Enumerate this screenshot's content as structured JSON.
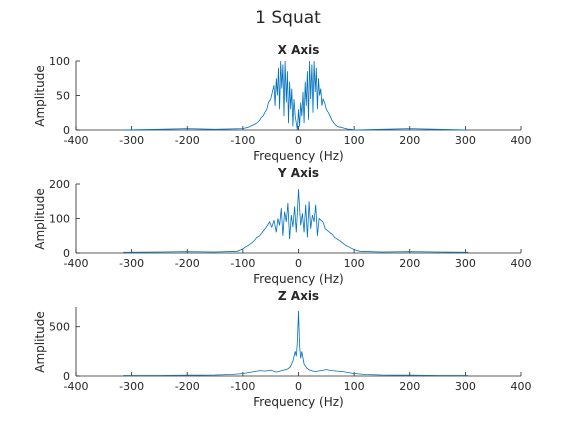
{
  "figure_title": "1 Squat",
  "colors": {
    "trace": "#0072BD",
    "axis": "#262626",
    "background": "#ffffff"
  },
  "chart_data": [
    {
      "type": "line",
      "title": "X Axis",
      "xlabel": "Frequency (Hz)",
      "ylabel": "Amplitude",
      "xlim": [
        -400,
        400
      ],
      "ylim": [
        0,
        100
      ],
      "xticks": [
        -400,
        -300,
        -200,
        -100,
        0,
        100,
        200,
        300,
        400
      ],
      "yticks": [
        0,
        50,
        100
      ],
      "grid": false,
      "series": [
        {
          "x": [
            -315,
            -250,
            -200,
            -150,
            -100,
            -95,
            -90,
            -85,
            -80,
            -75,
            -70,
            -67,
            -64,
            -60,
            -57,
            -54,
            -50,
            -47,
            -44,
            -42,
            -40,
            -38,
            -36,
            -34,
            -32,
            -30,
            -28,
            -26,
            -24,
            -22,
            -20,
            -18,
            -16,
            -14,
            -12,
            -10,
            -8,
            -6,
            -4,
            -2,
            0,
            2,
            4,
            6,
            8,
            10,
            12,
            14,
            16,
            18,
            20,
            22,
            24,
            26,
            28,
            30,
            32,
            34,
            36,
            38,
            40,
            42,
            44,
            47,
            50,
            54,
            57,
            60,
            64,
            67,
            70,
            75,
            80,
            85,
            90,
            95,
            100,
            150,
            200,
            250,
            305
          ],
          "y": [
            0,
            1,
            2,
            1,
            2,
            3,
            4,
            6,
            8,
            10,
            14,
            18,
            20,
            26,
            30,
            40,
            45,
            55,
            65,
            35,
            75,
            50,
            90,
            30,
            100,
            60,
            95,
            20,
            100,
            40,
            85,
            10,
            70,
            30,
            60,
            5,
            45,
            20,
            10,
            0,
            30,
            5,
            40,
            20,
            55,
            10,
            70,
            35,
            85,
            15,
            100,
            45,
            95,
            25,
            100,
            55,
            90,
            30,
            75,
            50,
            60,
            35,
            45,
            40,
            30,
            25,
            20,
            14,
            10,
            7,
            5,
            4,
            3,
            2,
            1,
            1,
            0,
            1,
            2,
            1,
            0
          ]
        }
      ]
    },
    {
      "type": "line",
      "title": "Y Axis",
      "xlabel": "Frequency (Hz)",
      "ylabel": "Amplitude",
      "xlim": [
        -400,
        400
      ],
      "ylim": [
        0,
        200
      ],
      "xticks": [
        -400,
        -300,
        -200,
        -100,
        0,
        100,
        200,
        300,
        400
      ],
      "yticks": [
        0,
        100,
        200
      ],
      "grid": false,
      "series": [
        {
          "x": [
            -315,
            -250,
            -200,
            -150,
            -110,
            -100,
            -95,
            -90,
            -85,
            -80,
            -75,
            -70,
            -65,
            -60,
            -56,
            -52,
            -48,
            -44,
            -40,
            -37,
            -34,
            -31,
            -28,
            -25,
            -22,
            -19,
            -16,
            -13,
            -10,
            -7,
            -4,
            -2,
            0,
            2,
            4,
            7,
            10,
            13,
            16,
            19,
            22,
            25,
            28,
            31,
            34,
            37,
            40,
            44,
            48,
            52,
            56,
            60,
            65,
            70,
            75,
            80,
            85,
            90,
            95,
            100,
            110,
            150,
            200,
            250,
            305
          ],
          "y": [
            2,
            3,
            4,
            3,
            5,
            12,
            18,
            22,
            28,
            35,
            45,
            50,
            60,
            70,
            80,
            90,
            75,
            95,
            60,
            100,
            80,
            130,
            50,
            120,
            90,
            145,
            40,
            110,
            75,
            135,
            60,
            120,
            185,
            130,
            80,
            115,
            60,
            140,
            45,
            150,
            70,
            110,
            90,
            140,
            50,
            100,
            95,
            90,
            70,
            65,
            60,
            55,
            45,
            40,
            35,
            28,
            22,
            18,
            14,
            10,
            5,
            3,
            4,
            3,
            2
          ]
        }
      ]
    },
    {
      "type": "line",
      "title": "Z Axis",
      "xlabel": "Frequency (Hz)",
      "ylabel": "Amplitude",
      "xlim": [
        -400,
        400
      ],
      "ylim": [
        0,
        700
      ],
      "xticks": [
        -400,
        -300,
        -200,
        -100,
        0,
        100,
        200,
        300,
        400
      ],
      "yticks": [
        0,
        500
      ],
      "grid": false,
      "series": [
        {
          "x": [
            -315,
            -250,
            -200,
            -150,
            -120,
            -100,
            -90,
            -80,
            -70,
            -60,
            -50,
            -40,
            -30,
            -20,
            -15,
            -10,
            -6,
            -4,
            -2,
            0,
            2,
            4,
            6,
            10,
            15,
            20,
            30,
            40,
            50,
            60,
            70,
            80,
            90,
            100,
            120,
            150,
            200,
            250,
            305
          ],
          "y": [
            5,
            5,
            8,
            10,
            15,
            25,
            35,
            45,
            55,
            50,
            60,
            40,
            55,
            70,
            90,
            150,
            250,
            200,
            350,
            660,
            300,
            180,
            250,
            120,
            80,
            60,
            45,
            55,
            65,
            55,
            50,
            45,
            35,
            25,
            15,
            10,
            8,
            5,
            5
          ]
        }
      ]
    }
  ]
}
